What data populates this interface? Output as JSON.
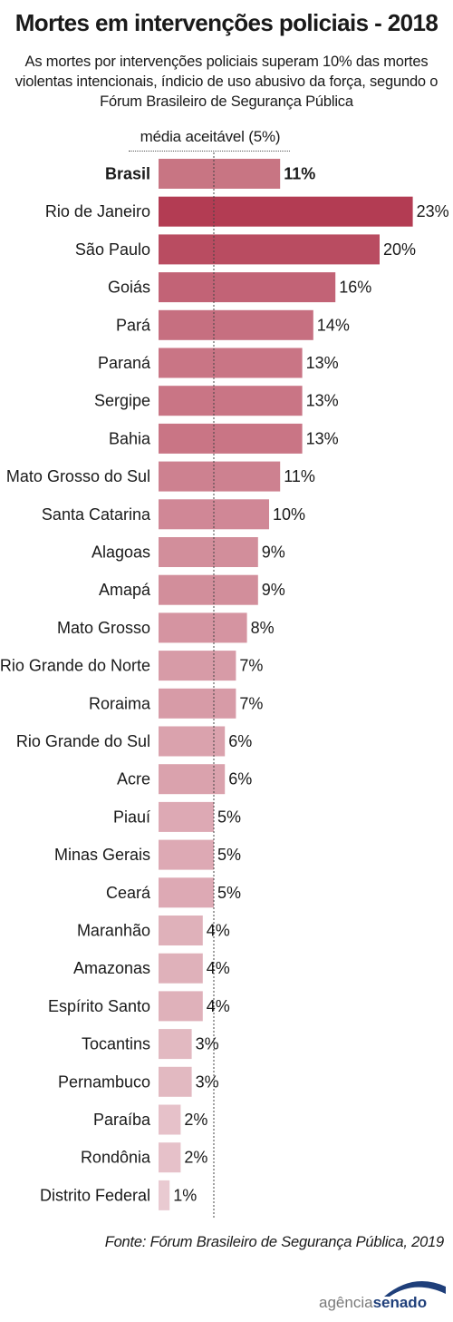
{
  "title": "Mortes em intervenções policiais - 2018",
  "subtitle": "As mortes por intervenções policiais superam 10% das mortes violentas intencionais, índicio de uso abusivo da força, segundo o Fórum Brasileiro de Segurança Pública",
  "reference": {
    "label": "média aceitável (5%)",
    "value": 5
  },
  "source": "Fonte: Fórum Brasileiro de Segurança Pública, 2019",
  "logo": {
    "part1": "agência",
    "part2": "senado"
  },
  "chart_data": {
    "type": "bar",
    "orientation": "horizontal",
    "title": "Mortes em intervenções policiais - 2018",
    "xlim": [
      0,
      23
    ],
    "grid": false,
    "categories": [
      "Brasil",
      "Rio de Janeiro",
      "São Paulo",
      "Goiás",
      "Pará",
      "Paraná",
      "Sergipe",
      "Bahia",
      "Mato Grosso do Sul",
      "Santa Catarina",
      "Alagoas",
      "Amapá",
      "Mato Grosso",
      "Rio Grande do Norte",
      "Roraima",
      "Rio Grande do Sul",
      "Acre",
      "Piauí",
      "Minas Gerais",
      "Ceará",
      "Maranhão",
      "Amazonas",
      "Espírito Santo",
      "Tocantins",
      "Pernambuco",
      "Paraíba",
      "Rondônia",
      "Distrito Federal"
    ],
    "values": [
      11,
      23,
      20,
      16,
      14,
      13,
      13,
      13,
      11,
      10,
      9,
      9,
      8,
      7,
      7,
      6,
      6,
      5,
      5,
      5,
      4,
      4,
      4,
      3,
      3,
      2,
      2,
      1
    ],
    "labels": [
      "11%",
      "23%",
      "20%",
      "16%",
      "14%",
      "13%",
      "13%",
      "13%",
      "11%",
      "10%",
      "9%",
      "9%",
      "8%",
      "7%",
      "7%",
      "6%",
      "6%",
      "5%",
      "5%",
      "5%",
      "4%",
      "4%",
      "4%",
      "3%",
      "3%",
      "2%",
      "2%",
      "1%"
    ],
    "highlight": [
      "Brasil"
    ],
    "colors": {
      "max": "#b33c53",
      "min": "#eed7dc",
      "highlight": "#c87583",
      "reference_line": "#444444"
    }
  }
}
